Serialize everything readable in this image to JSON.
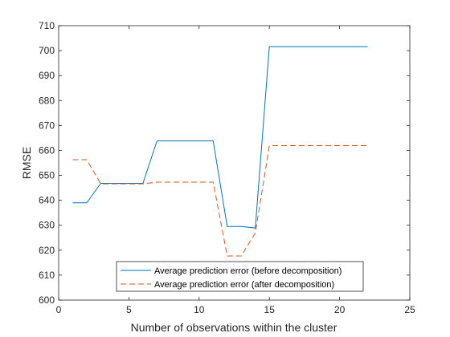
{
  "chart_data": {
    "type": "line",
    "xlabel": "Number of observations within the cluster",
    "ylabel": "RMSE",
    "xlim": [
      0,
      25
    ],
    "ylim": [
      600,
      710
    ],
    "xticks": [
      0,
      5,
      10,
      15,
      20,
      25
    ],
    "yticks": [
      600,
      610,
      620,
      630,
      640,
      650,
      660,
      670,
      680,
      690,
      700,
      710
    ],
    "grid": false,
    "legend_position": "bottom-center",
    "series": [
      {
        "name": "Average prediction error (before decomposition)",
        "color": "#0072BD",
        "style": "solid",
        "x": [
          1,
          2,
          3,
          4,
          5,
          6,
          7,
          8,
          9,
          10,
          11,
          12,
          13,
          14,
          15,
          16,
          17,
          18,
          19,
          20,
          21,
          22
        ],
        "y": [
          639,
          639,
          646.8,
          646.8,
          646.8,
          646.8,
          663.8,
          663.8,
          663.8,
          663.8,
          663.8,
          629.5,
          629.5,
          628.9,
          701.6,
          701.6,
          701.6,
          701.6,
          701.6,
          701.6,
          701.6,
          701.6
        ]
      },
      {
        "name": "Average prediction error (after decomposition)",
        "color": "#D95319",
        "style": "dashed",
        "x": [
          1,
          2,
          3,
          4,
          5,
          6,
          7,
          8,
          9,
          10,
          11,
          12,
          13,
          14,
          15,
          16,
          17,
          18,
          19,
          20,
          21,
          22
        ],
        "y": [
          656.3,
          656.3,
          646.6,
          646.6,
          646.6,
          646.6,
          647.3,
          647.3,
          647.3,
          647.3,
          647.3,
          617.7,
          617.7,
          626.9,
          661.9,
          661.9,
          661.9,
          661.9,
          661.9,
          661.9,
          661.9,
          661.9
        ]
      }
    ]
  }
}
